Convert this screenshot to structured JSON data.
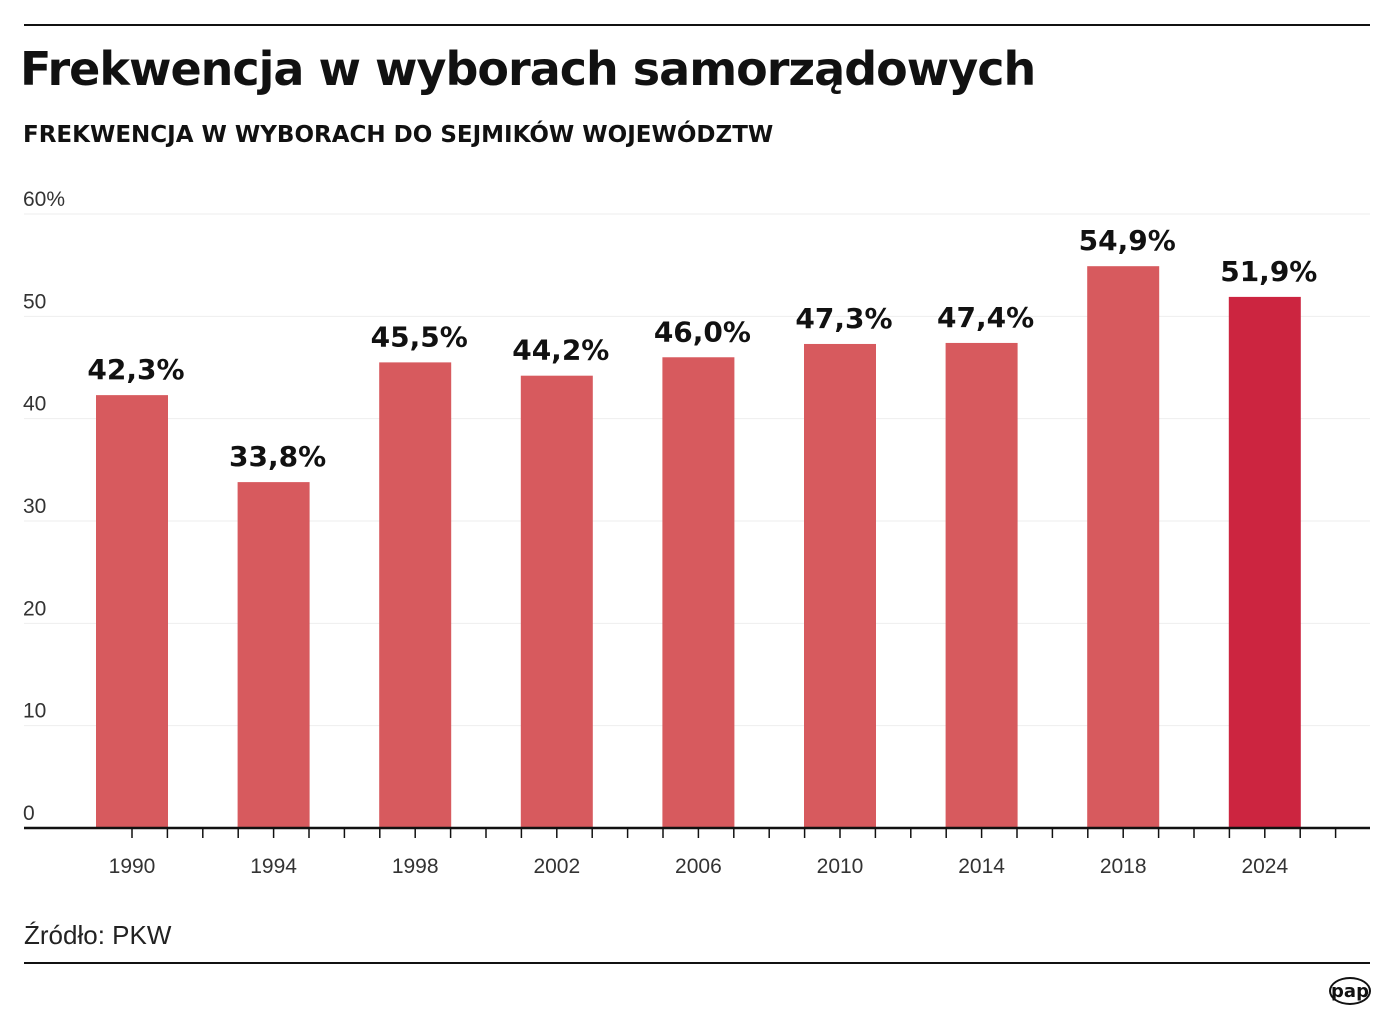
{
  "title": "Frekwencja w wyborach samorządowych",
  "subtitle": "FREKWENCJA W WYBORACH DO SEJMIKÓW WOJEWÓDZTW",
  "source": "Źródło: PKW",
  "logo": "pap",
  "colors": {
    "bar": "#d75a5e",
    "highlight": "#cc2540"
  },
  "chart_data": {
    "type": "bar",
    "title": "FREKWENCJA W WYBORACH DO SEJMIKÓW WOJEWÓDZTW",
    "categories": [
      "1990",
      "1994",
      "1998",
      "2002",
      "2006",
      "2010",
      "2014",
      "2018",
      "2024"
    ],
    "values": [
      42.3,
      33.8,
      45.5,
      44.2,
      46.0,
      47.3,
      47.4,
      54.9,
      51.9
    ],
    "labels": [
      "42,3%",
      "33,8%",
      "45,5%",
      "44,2%",
      "46,0%",
      "47,3%",
      "47,4%",
      "54,9%",
      "51,9%"
    ],
    "highlight_index": 8,
    "ylim": [
      0,
      60
    ],
    "yticks": [
      "0",
      "10",
      "20",
      "30",
      "40",
      "50",
      "60%"
    ],
    "grid": true,
    "xlabel": "",
    "ylabel": ""
  }
}
